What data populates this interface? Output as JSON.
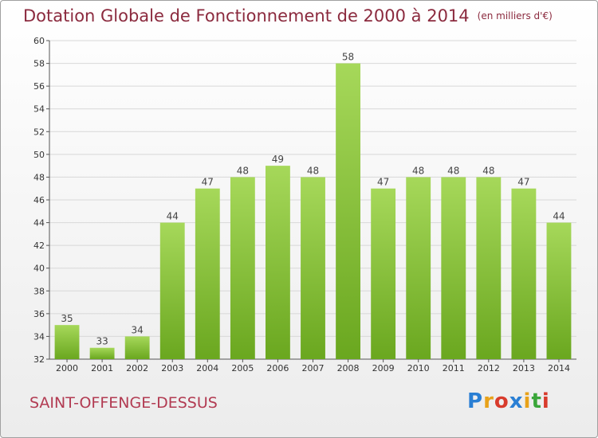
{
  "title": "Dotation Globale de Fonctionnement de 2000 à 2014",
  "unit_note": "(en milliers d'€)",
  "commune": "SAINT-OFFENGE-DESSUS",
  "brand": {
    "letters": [
      "P",
      "r",
      "o",
      "x",
      "i",
      "t",
      "i"
    ],
    "colors": [
      "#2a7fd4",
      "#e8a21a",
      "#d83b2c",
      "#2a7fd4",
      "#e8a21a",
      "#3aa63a",
      "#d83b2c"
    ]
  },
  "colors": {
    "bar_top": "#a6d85a",
    "bar_bottom": "#6aa71f",
    "grid": "#d8d8d8",
    "axis": "#555555"
  },
  "chart_data": {
    "type": "bar",
    "title": "Dotation Globale de Fonctionnement de 2000 à 2014",
    "categories": [
      "2000",
      "2001",
      "2002",
      "2003",
      "2004",
      "2005",
      "2006",
      "2007",
      "2008",
      "2009",
      "2010",
      "2011",
      "2012",
      "2013",
      "2014"
    ],
    "values": [
      35,
      33,
      34,
      44,
      47,
      48,
      49,
      48,
      58,
      47,
      48,
      48,
      48,
      47,
      44
    ],
    "ylim": [
      32,
      60
    ],
    "yticks": [
      32,
      34,
      36,
      38,
      40,
      42,
      44,
      46,
      48,
      50,
      52,
      54,
      56,
      58,
      60
    ],
    "grid": true,
    "xlabel": "",
    "ylabel": ""
  }
}
